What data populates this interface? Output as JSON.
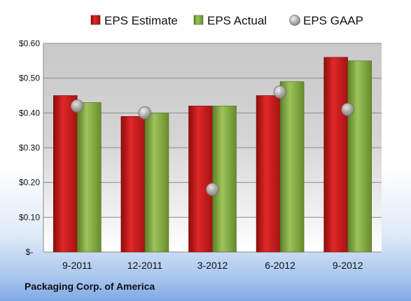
{
  "company": "Packaging Corp. of America",
  "chart_data": {
    "type": "bar",
    "categories": [
      "9-2011",
      "12-2011",
      "3-2012",
      "6-2012",
      "9-2012"
    ],
    "series": [
      {
        "name": "EPS Estimate",
        "type": "bar",
        "color": "#c41a1a",
        "values": [
          0.45,
          0.39,
          0.42,
          0.45,
          0.56
        ]
      },
      {
        "name": "EPS Actual",
        "type": "bar",
        "color": "#7aa33a",
        "values": [
          0.43,
          0.4,
          0.42,
          0.49,
          0.55
        ]
      },
      {
        "name": "EPS GAAP",
        "type": "scatter",
        "color": "#a9a9a9",
        "values": [
          0.42,
          0.4,
          0.18,
          0.46,
          0.41
        ]
      }
    ],
    "ylim": [
      0,
      0.6
    ],
    "yticks": [
      {
        "value": 0.6,
        "label": "$0.60"
      },
      {
        "value": 0.5,
        "label": "$0.50"
      },
      {
        "value": 0.4,
        "label": "$0.40"
      },
      {
        "value": 0.3,
        "label": "$0.30"
      },
      {
        "value": 0.2,
        "label": "$0.20"
      },
      {
        "value": 0.1,
        "label": "$0.10"
      },
      {
        "value": 0.0,
        "label": "$-"
      }
    ],
    "grid": true,
    "legend": "top"
  }
}
